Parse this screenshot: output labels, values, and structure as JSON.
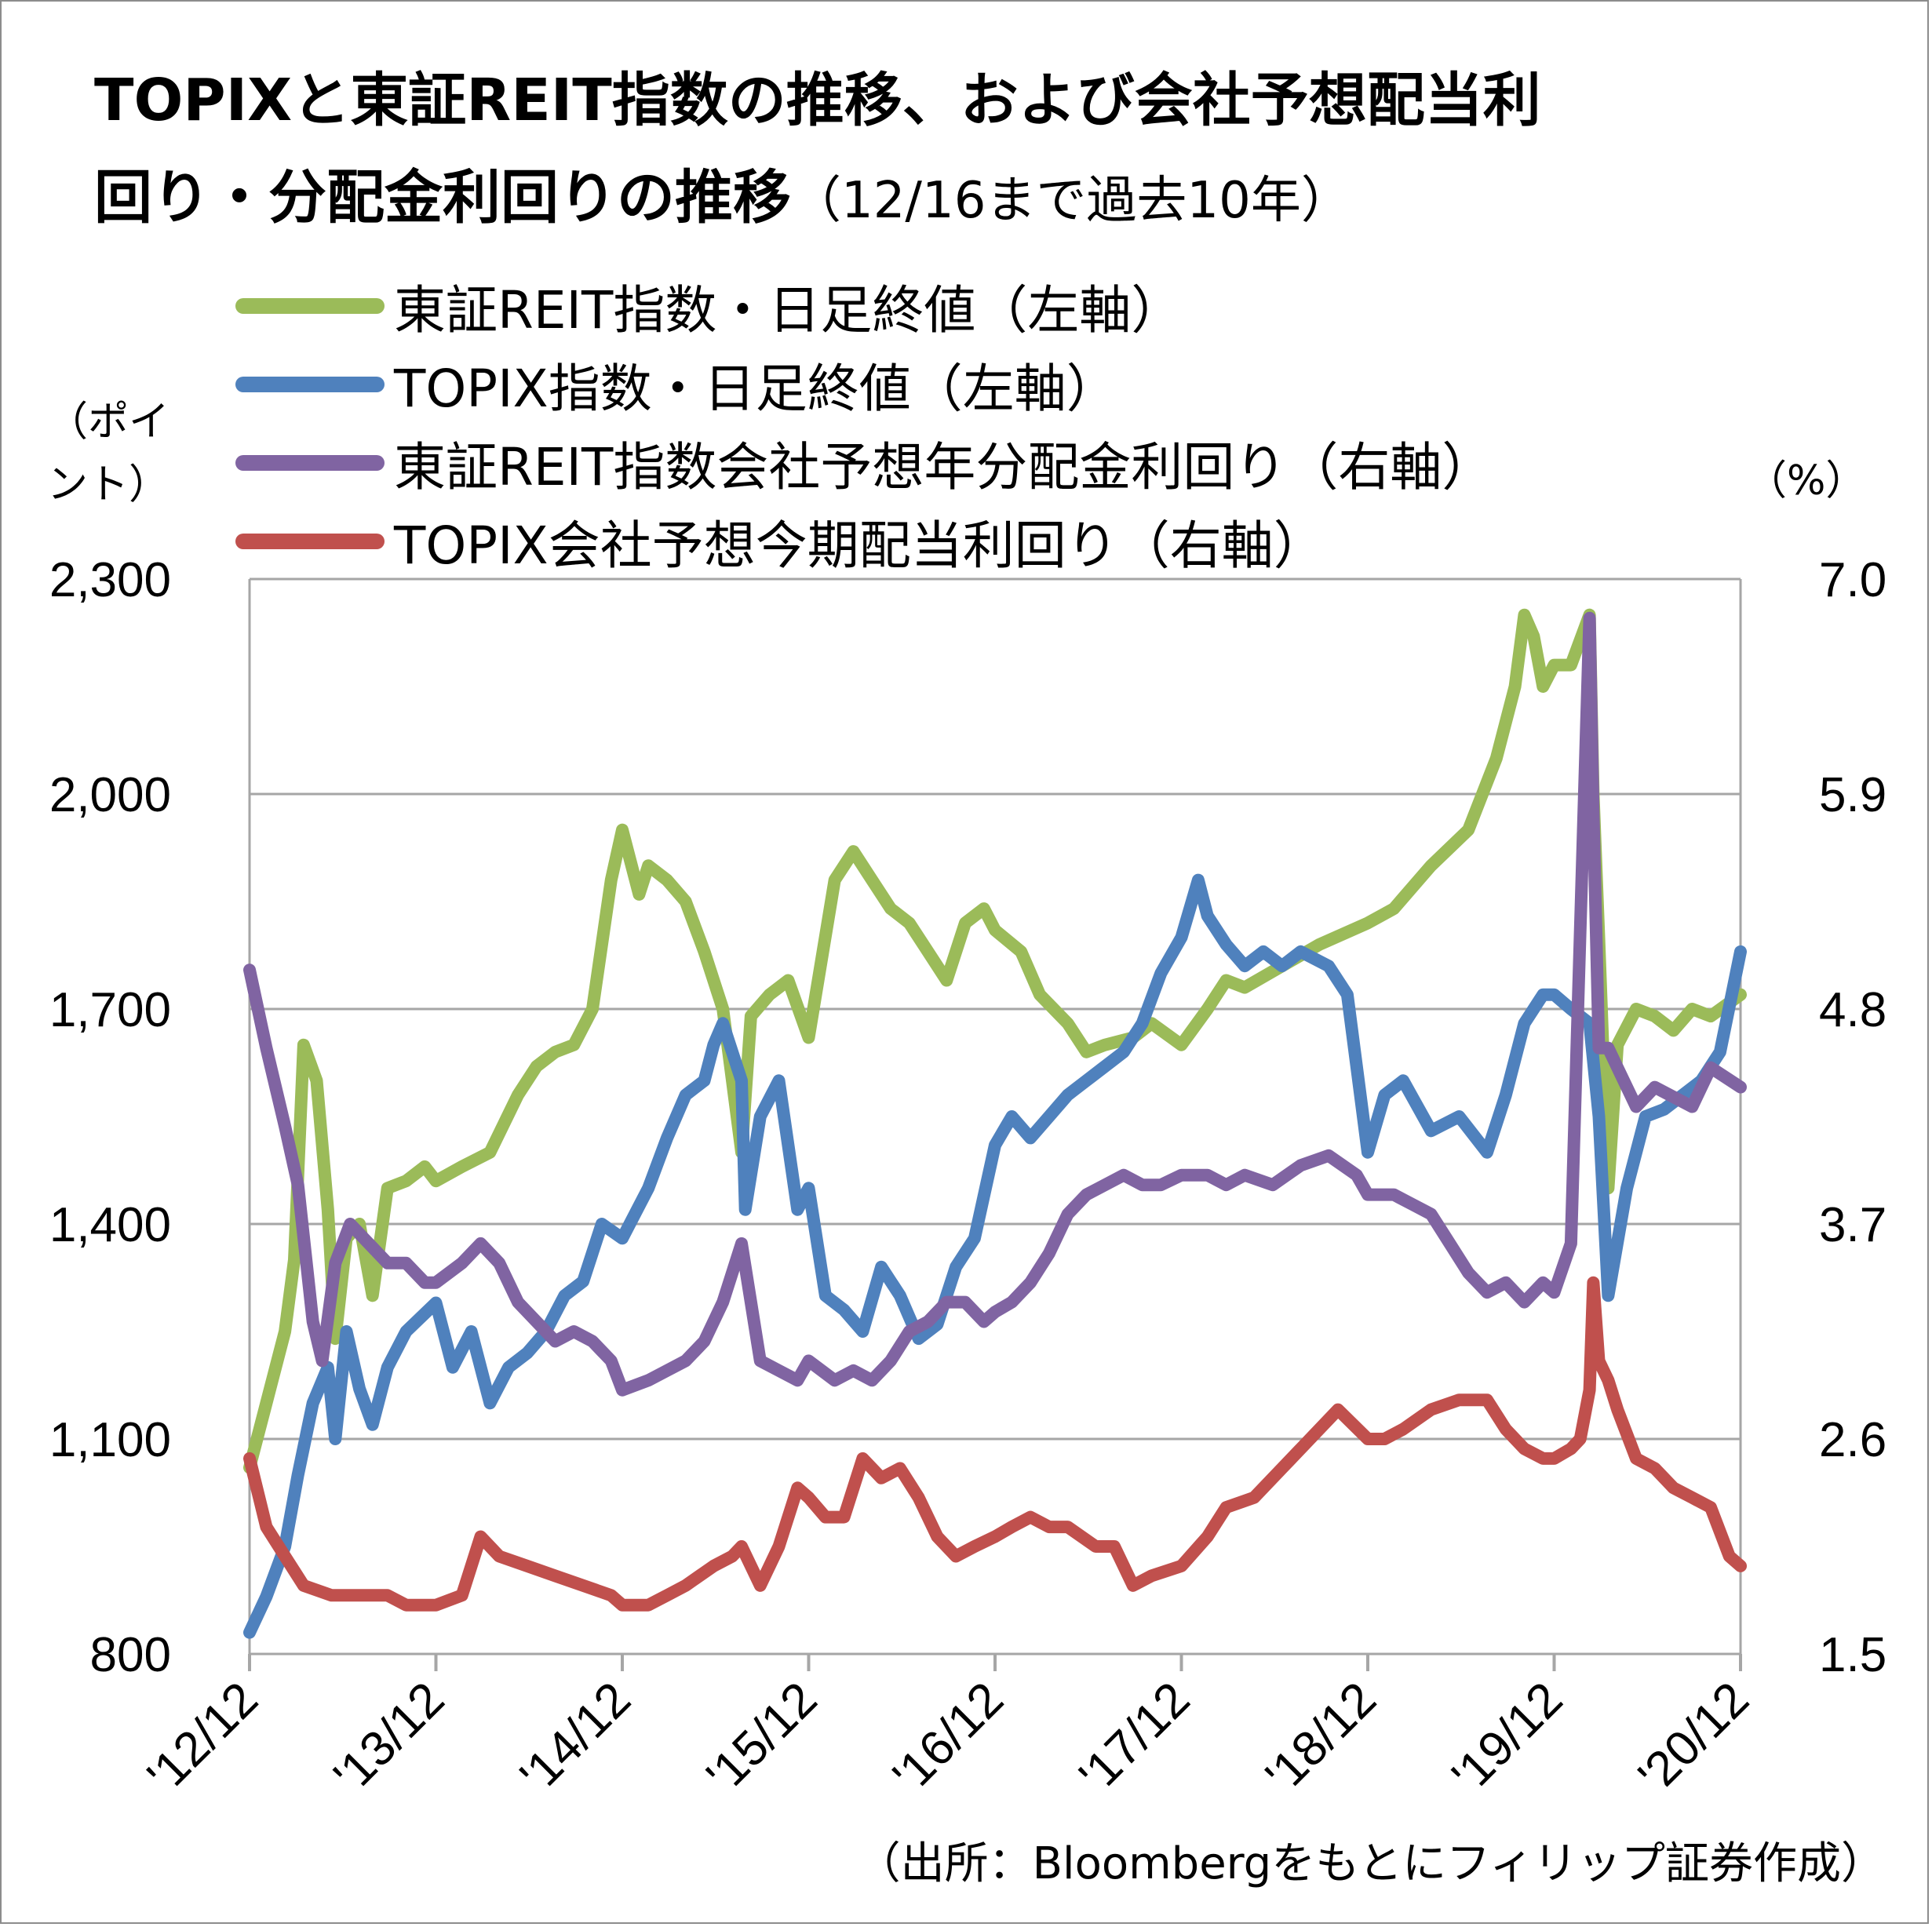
{
  "title_line1": "TOPIXと東証REIT指数の推移、および会社予想配当利",
  "title_line2_main": "回り・分配金利回りの推移",
  "title_line2_sub": "（12/16まで過去10年）",
  "source": "（出所：Bloombergをもとにフィリップ証券作成）",
  "chart_data": {
    "type": "line",
    "left_axis_unit_line1": "（ポイ",
    "left_axis_unit_line2": "ント）",
    "right_axis_unit": "（%）",
    "y_left": {
      "min": 800,
      "max": 2300,
      "ticks": [
        "2,300",
        "2,000",
        "1,700",
        "1,400",
        "1,100",
        "800"
      ],
      "tick_values": [
        2300,
        2000,
        1700,
        1400,
        1100,
        800
      ]
    },
    "y_right": {
      "min": 1.5,
      "max": 7.0,
      "ticks": [
        "7.0",
        "5.9",
        "4.8",
        "3.7",
        "2.6",
        "1.5"
      ],
      "tick_values": [
        7.0,
        5.9,
        4.8,
        3.7,
        2.6,
        1.5
      ]
    },
    "x_range": [
      2012.96,
      2020.96
    ],
    "x_ticks": [
      "'12/12",
      "'13/12",
      "'14/12",
      "'15/12",
      "'16/12",
      "'17/12",
      "'18/12",
      "'19/12",
      "'20/12"
    ],
    "grid": true,
    "colors": {
      "reit": "#9bbb59",
      "topix": "#4f81bd",
      "reit_yield": "#8064a2",
      "topix_yield": "#c0504d",
      "grid": "#a6a6a6"
    },
    "series": [
      {
        "name": "東証REIT指数・日足終値（左軸）",
        "axis": "left",
        "color": "#9bbb59",
        "x": [
          2012.96,
          2013.05,
          2013.15,
          2013.2,
          2013.25,
          2013.32,
          2013.38,
          2013.42,
          2013.48,
          2013.55,
          2013.62,
          2013.7,
          2013.8,
          2013.9,
          2013.96,
          2014.1,
          2014.25,
          2014.4,
          2014.5,
          2014.6,
          2014.7,
          2014.8,
          2014.9,
          2014.96,
          2015.05,
          2015.1,
          2015.2,
          2015.3,
          2015.4,
          2015.5,
          2015.6,
          2015.65,
          2015.75,
          2015.85,
          2015.96,
          2016.1,
          2016.2,
          2016.3,
          2016.4,
          2016.5,
          2016.6,
          2016.7,
          2016.8,
          2016.9,
          2016.96,
          2017.1,
          2017.2,
          2017.35,
          2017.45,
          2017.55,
          2017.7,
          2017.8,
          2017.96,
          2018.1,
          2018.2,
          2018.3,
          2018.5,
          2018.7,
          2018.96,
          2019.1,
          2019.3,
          2019.5,
          2019.65,
          2019.75,
          2019.8,
          2019.85,
          2019.9,
          2019.96,
          2020.05,
          2020.15,
          2020.17,
          2020.2,
          2020.25,
          2020.3,
          2020.4,
          2020.5,
          2020.6,
          2020.7,
          2020.8,
          2020.96
        ],
        "y": [
          1060,
          1150,
          1250,
          1350,
          1650,
          1600,
          1420,
          1240,
          1380,
          1400,
          1300,
          1450,
          1460,
          1480,
          1460,
          1480,
          1500,
          1580,
          1620,
          1640,
          1650,
          1700,
          1880,
          1950,
          1860,
          1900,
          1880,
          1850,
          1780,
          1700,
          1500,
          1690,
          1720,
          1740,
          1660,
          1880,
          1920,
          1880,
          1840,
          1820,
          1780,
          1740,
          1820,
          1840,
          1810,
          1780,
          1720,
          1680,
          1640,
          1650,
          1660,
          1680,
          1650,
          1700,
          1740,
          1730,
          1760,
          1790,
          1820,
          1840,
          1900,
          1950,
          2050,
          2150,
          2250,
          2220,
          2150,
          2180,
          2180,
          2250,
          2000,
          1800,
          1450,
          1650,
          1700,
          1690,
          1670,
          1700,
          1690,
          1720
        ]
      },
      {
        "name": "TOPIX指数・日足終値（左軸）",
        "axis": "left",
        "color": "#4f81bd",
        "x": [
          2012.96,
          2013.05,
          2013.15,
          2013.22,
          2013.3,
          2013.38,
          2013.42,
          2013.48,
          2013.55,
          2013.62,
          2013.7,
          2013.8,
          2013.96,
          2014.05,
          2014.15,
          2014.25,
          2014.35,
          2014.45,
          2014.55,
          2014.65,
          2014.75,
          2014.85,
          2014.96,
          2015.1,
          2015.2,
          2015.3,
          2015.4,
          2015.45,
          2015.5,
          2015.6,
          2015.62,
          2015.7,
          2015.8,
          2015.9,
          2015.96,
          2016.05,
          2016.15,
          2016.25,
          2016.35,
          2016.45,
          2016.55,
          2016.65,
          2016.75,
          2016.85,
          2016.96,
          2017.05,
          2017.15,
          2017.25,
          2017.35,
          2017.45,
          2017.55,
          2017.65,
          2017.75,
          2017.85,
          2017.96,
          2018.05,
          2018.1,
          2018.2,
          2018.3,
          2018.4,
          2018.5,
          2018.6,
          2018.75,
          2018.85,
          2018.96,
          2019.05,
          2019.15,
          2019.3,
          2019.45,
          2019.6,
          2019.7,
          2019.8,
          2019.9,
          2019.96,
          2020.05,
          2020.15,
          2020.2,
          2020.25,
          2020.35,
          2020.45,
          2020.55,
          2020.65,
          2020.75,
          2020.85,
          2020.96
        ],
        "y": [
          830,
          880,
          950,
          1050,
          1150,
          1200,
          1100,
          1250,
          1170,
          1120,
          1200,
          1250,
          1290,
          1200,
          1250,
          1150,
          1200,
          1220,
          1250,
          1300,
          1320,
          1400,
          1380,
          1450,
          1520,
          1580,
          1600,
          1650,
          1680,
          1600,
          1420,
          1550,
          1600,
          1420,
          1450,
          1300,
          1280,
          1250,
          1340,
          1300,
          1240,
          1260,
          1340,
          1380,
          1510,
          1550,
          1520,
          1550,
          1580,
          1600,
          1620,
          1640,
          1680,
          1750,
          1800,
          1880,
          1830,
          1790,
          1760,
          1780,
          1760,
          1780,
          1760,
          1720,
          1500,
          1580,
          1600,
          1530,
          1550,
          1500,
          1580,
          1680,
          1720,
          1720,
          1700,
          1680,
          1550,
          1300,
          1450,
          1550,
          1560,
          1580,
          1600,
          1640,
          1780
        ]
      },
      {
        "name": "東証REIT指数会社予想年分配金利回り（右軸）",
        "axis": "right",
        "color": "#8064a2",
        "x": [
          2012.96,
          2013.05,
          2013.15,
          2013.22,
          2013.3,
          2013.35,
          2013.42,
          2013.5,
          2013.6,
          2013.7,
          2013.8,
          2013.9,
          2013.96,
          2014.1,
          2014.2,
          2014.3,
          2014.4,
          2014.5,
          2014.6,
          2014.7,
          2014.8,
          2014.9,
          2014.96,
          2015.1,
          2015.2,
          2015.3,
          2015.4,
          2015.5,
          2015.6,
          2015.7,
          2015.8,
          2015.9,
          2015.96,
          2016.1,
          2016.2,
          2016.3,
          2016.4,
          2016.5,
          2016.6,
          2016.7,
          2016.8,
          2016.9,
          2016.96,
          2017.05,
          2017.15,
          2017.25,
          2017.35,
          2017.45,
          2017.55,
          2017.65,
          2017.75,
          2017.85,
          2017.96,
          2018.1,
          2018.2,
          2018.3,
          2018.45,
          2018.6,
          2018.75,
          2018.9,
          2018.96,
          2019.1,
          2019.2,
          2019.3,
          2019.4,
          2019.5,
          2019.6,
          2019.7,
          2019.8,
          2019.9,
          2019.96,
          2020.05,
          2020.1,
          2020.15,
          2020.17,
          2020.2,
          2020.25,
          2020.3,
          2020.4,
          2020.5,
          2020.6,
          2020.7,
          2020.8,
          2020.96
        ],
        "y": [
          5.0,
          4.6,
          4.2,
          3.9,
          3.2,
          3.0,
          3.5,
          3.7,
          3.6,
          3.5,
          3.5,
          3.4,
          3.4,
          3.5,
          3.6,
          3.5,
          3.3,
          3.2,
          3.1,
          3.15,
          3.1,
          3.0,
          2.85,
          2.9,
          2.95,
          3.0,
          3.1,
          3.3,
          3.6,
          3.0,
          2.95,
          2.9,
          3.0,
          2.9,
          2.95,
          2.9,
          3.0,
          3.15,
          3.2,
          3.3,
          3.3,
          3.2,
          3.25,
          3.3,
          3.4,
          3.55,
          3.75,
          3.85,
          3.9,
          3.95,
          3.9,
          3.9,
          3.95,
          3.95,
          3.9,
          3.95,
          3.9,
          4.0,
          4.05,
          3.95,
          3.85,
          3.85,
          3.8,
          3.75,
          3.6,
          3.45,
          3.35,
          3.4,
          3.3,
          3.4,
          3.35,
          3.6,
          5.2,
          6.8,
          5.8,
          4.6,
          4.6,
          4.5,
          4.3,
          4.4,
          4.35,
          4.3,
          4.5,
          4.4
        ]
      },
      {
        "name": "TOPIX会社予想今期配当利回り（右軸）",
        "axis": "right",
        "color": "#c0504d",
        "x": [
          2012.96,
          2013.05,
          2013.15,
          2013.25,
          2013.4,
          2013.55,
          2013.7,
          2013.8,
          2013.96,
          2014.1,
          2014.2,
          2014.3,
          2014.45,
          2014.6,
          2014.75,
          2014.9,
          2014.96,
          2015.1,
          2015.2,
          2015.3,
          2015.45,
          2015.55,
          2015.6,
          2015.7,
          2015.8,
          2015.9,
          2015.96,
          2016.05,
          2016.15,
          2016.25,
          2016.35,
          2016.45,
          2016.55,
          2016.65,
          2016.75,
          2016.85,
          2016.96,
          2017.05,
          2017.15,
          2017.25,
          2017.35,
          2017.5,
          2017.6,
          2017.7,
          2017.8,
          2017.96,
          2018.1,
          2018.2,
          2018.35,
          2018.5,
          2018.65,
          2018.8,
          2018.96,
          2019.05,
          2019.15,
          2019.3,
          2019.45,
          2019.6,
          2019.7,
          2019.8,
          2019.9,
          2019.96,
          2020.05,
          2020.1,
          2020.15,
          2020.17,
          2020.2,
          2020.25,
          2020.3,
          2020.4,
          2020.5,
          2020.6,
          2020.7,
          2020.8,
          2020.9,
          2020.96
        ],
        "y": [
          2.5,
          2.15,
          2.0,
          1.85,
          1.8,
          1.8,
          1.8,
          1.75,
          1.75,
          1.8,
          2.1,
          2.0,
          1.95,
          1.9,
          1.85,
          1.8,
          1.75,
          1.75,
          1.8,
          1.85,
          1.95,
          2.0,
          2.05,
          1.85,
          2.05,
          2.35,
          2.3,
          2.2,
          2.2,
          2.5,
          2.4,
          2.45,
          2.3,
          2.1,
          2.0,
          2.05,
          2.1,
          2.15,
          2.2,
          2.15,
          2.15,
          2.05,
          2.05,
          1.85,
          1.9,
          1.95,
          2.1,
          2.25,
          2.3,
          2.45,
          2.6,
          2.75,
          2.6,
          2.6,
          2.65,
          2.75,
          2.8,
          2.8,
          2.65,
          2.55,
          2.5,
          2.5,
          2.55,
          2.6,
          2.85,
          3.4,
          3.0,
          2.9,
          2.75,
          2.5,
          2.45,
          2.35,
          2.3,
          2.25,
          2.0,
          1.95
        ]
      }
    ]
  }
}
